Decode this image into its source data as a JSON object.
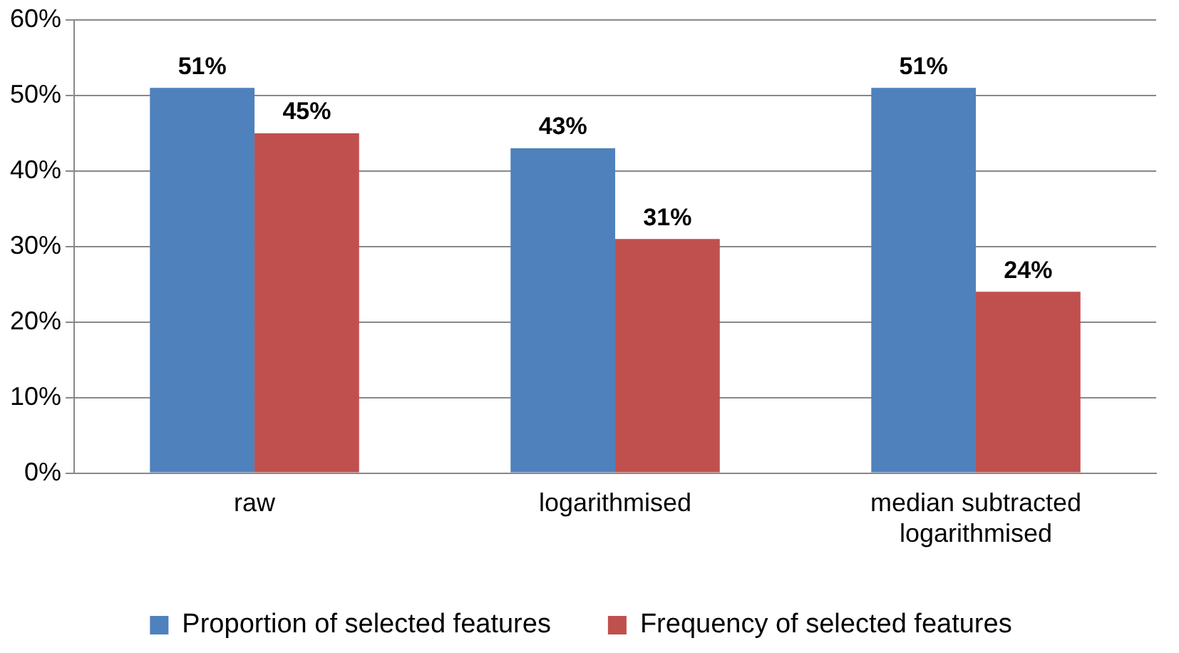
{
  "chart_data": {
    "type": "bar",
    "categories": [
      "raw",
      "logarithmised",
      "median subtracted logarithmised"
    ],
    "series": [
      {
        "name": "Proportion of selected features",
        "color": "#4f81bd",
        "values": [
          51,
          43,
          51
        ],
        "value_labels": [
          "51%",
          "43%",
          "51%"
        ]
      },
      {
        "name": "Frequency of selected features",
        "color": "#c0504d",
        "values": [
          45,
          31,
          24
        ],
        "value_labels": [
          "45%",
          "31%",
          "24%"
        ]
      }
    ],
    "ylim": [
      0,
      60
    ],
    "yticks": [
      {
        "value": 0,
        "label": "0%"
      },
      {
        "value": 10,
        "label": "10%"
      },
      {
        "value": 20,
        "label": "20%"
      },
      {
        "value": 30,
        "label": "30%"
      },
      {
        "value": 40,
        "label": "40%"
      },
      {
        "value": 50,
        "label": "50%"
      },
      {
        "value": 60,
        "label": "60%"
      }
    ],
    "grid": "y",
    "legend": "bottom"
  }
}
